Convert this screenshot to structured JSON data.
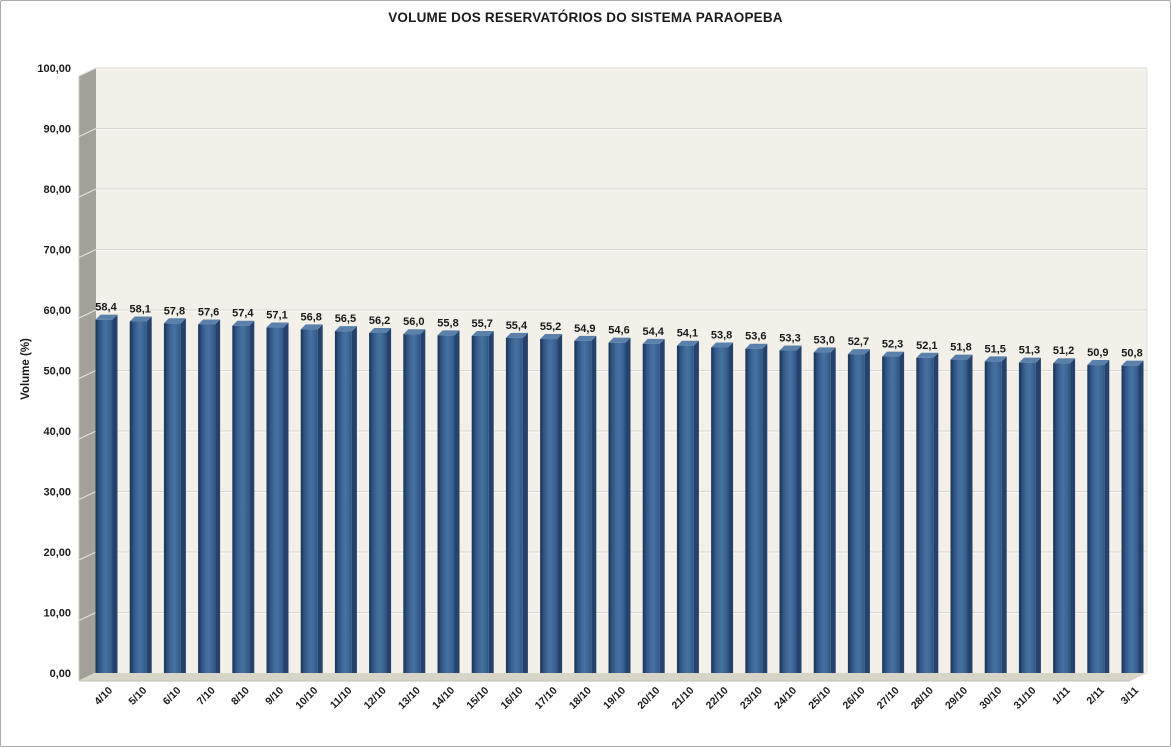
{
  "chart_data": {
    "type": "bar",
    "title": "VOLUME DOS RESERVATÓRIOS DO SISTEMA PARAOPEBA",
    "xlabel": "",
    "ylabel": "Volume (%)",
    "categories": [
      "4/10",
      "5/10",
      "6/10",
      "7/10",
      "8/10",
      "9/10",
      "10/10",
      "11/10",
      "12/10",
      "13/10",
      "14/10",
      "15/10",
      "16/10",
      "17/10",
      "18/10",
      "19/10",
      "20/10",
      "21/10",
      "22/10",
      "23/10",
      "24/10",
      "25/10",
      "26/10",
      "27/10",
      "28/10",
      "29/10",
      "30/10",
      "31/10",
      "1/11",
      "2/11",
      "3/11"
    ],
    "values": [
      58.4,
      58.1,
      57.8,
      57.6,
      57.4,
      57.1,
      56.8,
      56.5,
      56.2,
      56.0,
      55.8,
      55.7,
      55.4,
      55.2,
      54.9,
      54.6,
      54.4,
      54.1,
      53.8,
      53.6,
      53.3,
      53.0,
      52.7,
      52.3,
      52.1,
      51.8,
      51.5,
      51.3,
      51.2,
      50.9,
      50.8
    ],
    "value_labels": [
      "58,4",
      "58,1",
      "57,8",
      "57,6",
      "57,4",
      "57,1",
      "56,8",
      "56,5",
      "56,2",
      "56,0",
      "55,8",
      "55,7",
      "55,4",
      "55,2",
      "54,9",
      "54,6",
      "54,4",
      "54,1",
      "53,8",
      "53,6",
      "53,3",
      "53,0",
      "52,7",
      "52,3",
      "52,1",
      "51,8",
      "51,5",
      "51,3",
      "51,2",
      "50,9",
      "50,8"
    ],
    "ylim": [
      0,
      100
    ],
    "ytick_step": 10,
    "ytick_labels": [
      "0,00",
      "10,00",
      "20,00",
      "30,00",
      "40,00",
      "50,00",
      "60,00",
      "70,00",
      "80,00",
      "90,00",
      "100,00"
    ],
    "grid": true,
    "legend": "none",
    "style_3d": true,
    "colors": {
      "bar_front": "#3A6394",
      "bar_front_edge": "#1F3B60",
      "bar_side": "#24426B",
      "bar_top": "#5B81AB",
      "plot_bg": "#F2F0E9",
      "wall": "#A2A099",
      "wall_line": "#E2E0D9",
      "floor": "#D7D4C8",
      "floor_edge": "#C2BFB3",
      "grid_line": "#D9D6CD",
      "grid_highlight": "#FCFBF8",
      "text": "#1A1A1A"
    }
  }
}
